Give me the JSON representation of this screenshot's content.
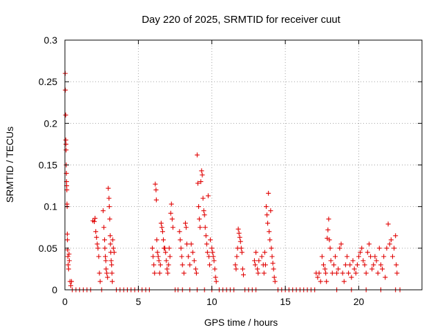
{
  "chart_data": {
    "type": "scatter",
    "title": "Day 220 of 2025, SRMTID for receiver cuut",
    "xlabel": "GPS time / hours",
    "ylabel": "SRMTID / TECUs",
    "xlim": [
      0,
      24.3
    ],
    "ylim": [
      0,
      0.3
    ],
    "xticks": [
      0,
      5,
      10,
      15,
      20
    ],
    "yticks": [
      0,
      0.05,
      0.1,
      0.15,
      0.2,
      0.25,
      0.3
    ],
    "grid": true,
    "marker": "plus",
    "color": "#e00000",
    "series": [
      {
        "name": "SRMTID",
        "points": [
          [
            0.02,
            0.26
          ],
          [
            0.03,
            0.24
          ],
          [
            0.05,
            0.21
          ],
          [
            0.06,
            0.18
          ],
          [
            0.07,
            0.175
          ],
          [
            0.08,
            0.168
          ],
          [
            0.09,
            0.15
          ],
          [
            0.1,
            0.14
          ],
          [
            0.11,
            0.13
          ],
          [
            0.12,
            0.125
          ],
          [
            0.13,
            0.12
          ],
          [
            0.14,
            0.103
          ],
          [
            0.15,
            0.1
          ],
          [
            0.16,
            0.067
          ],
          [
            0.17,
            0.06
          ],
          [
            0.18,
            0.048
          ],
          [
            0.2,
            0.04
          ],
          [
            0.22,
            0.03
          ],
          [
            0.25,
            0.025
          ],
          [
            0.28,
            0.043
          ],
          [
            0.3,
            0.035
          ],
          [
            0.35,
            0.01
          ],
          [
            0.4,
            0.005
          ],
          [
            0.45,
            0.01
          ],
          [
            1.9,
            0.083
          ],
          [
            2.0,
            0.082
          ],
          [
            2.05,
            0.086
          ],
          [
            2.1,
            0.07
          ],
          [
            2.15,
            0.063
          ],
          [
            2.2,
            0.055
          ],
          [
            2.25,
            0.05
          ],
          [
            2.3,
            0.04
          ],
          [
            2.35,
            0.02
          ],
          [
            2.4,
            0.01
          ],
          [
            2.6,
            0.095
          ],
          [
            2.65,
            0.075
          ],
          [
            2.7,
            0.06
          ],
          [
            2.72,
            0.05
          ],
          [
            2.75,
            0.04
          ],
          [
            2.78,
            0.035
          ],
          [
            2.8,
            0.025
          ],
          [
            2.85,
            0.02
          ],
          [
            2.9,
            0.015
          ],
          [
            2.95,
            0.122
          ],
          [
            3.0,
            0.11
          ],
          [
            3.02,
            0.1
          ],
          [
            3.05,
            0.085
          ],
          [
            3.08,
            0.065
          ],
          [
            3.1,
            0.055
          ],
          [
            3.12,
            0.045
          ],
          [
            3.15,
            0.035
          ],
          [
            3.18,
            0.03
          ],
          [
            3.2,
            0.02
          ],
          [
            3.22,
            0.01
          ],
          [
            3.25,
            0.06
          ],
          [
            3.3,
            0.05
          ],
          [
            3.35,
            0.045
          ],
          [
            5.95,
            0.05
          ],
          [
            6.0,
            0.04
          ],
          [
            6.05,
            0.03
          ],
          [
            6.1,
            0.02
          ],
          [
            6.15,
            0.127
          ],
          [
            6.2,
            0.12
          ],
          [
            6.22,
            0.108
          ],
          [
            6.25,
            0.06
          ],
          [
            6.3,
            0.045
          ],
          [
            6.35,
            0.04
          ],
          [
            6.4,
            0.035
          ],
          [
            6.45,
            0.02
          ],
          [
            6.5,
            0.03
          ],
          [
            6.55,
            0.08
          ],
          [
            6.6,
            0.075
          ],
          [
            6.65,
            0.07
          ],
          [
            6.7,
            0.06
          ],
          [
            6.75,
            0.05
          ],
          [
            6.8,
            0.05
          ],
          [
            6.85,
            0.045
          ],
          [
            6.9,
            0.035
          ],
          [
            6.95,
            0.025
          ],
          [
            7.0,
            0.02
          ],
          [
            7.05,
            0.03
          ],
          [
            7.1,
            0.05
          ],
          [
            7.15,
            0.04
          ],
          [
            7.2,
            0.092
          ],
          [
            7.25,
            0.103
          ],
          [
            7.3,
            0.085
          ],
          [
            7.35,
            0.075
          ],
          [
            7.8,
            0.07
          ],
          [
            7.85,
            0.06
          ],
          [
            7.9,
            0.05
          ],
          [
            7.95,
            0.04
          ],
          [
            8.0,
            0.03
          ],
          [
            8.1,
            0.02
          ],
          [
            8.2,
            0.08
          ],
          [
            8.25,
            0.075
          ],
          [
            8.3,
            0.055
          ],
          [
            8.4,
            0.04
          ],
          [
            8.5,
            0.03
          ],
          [
            8.6,
            0.055
          ],
          [
            8.7,
            0.045
          ],
          [
            8.8,
            0.035
          ],
          [
            8.9,
            0.025
          ],
          [
            8.95,
            0.02
          ],
          [
            9.0,
            0.162
          ],
          [
            9.05,
            0.128
          ],
          [
            9.1,
            0.1
          ],
          [
            9.15,
            0.085
          ],
          [
            9.2,
            0.075
          ],
          [
            9.25,
            0.13
          ],
          [
            9.3,
            0.143
          ],
          [
            9.35,
            0.138
          ],
          [
            9.4,
            0.11
          ],
          [
            9.45,
            0.095
          ],
          [
            9.5,
            0.09
          ],
          [
            9.55,
            0.075
          ],
          [
            9.6,
            0.065
          ],
          [
            9.65,
            0.055
          ],
          [
            9.7,
            0.045
          ],
          [
            9.75,
            0.113
          ],
          [
            9.8,
            0.04
          ],
          [
            9.85,
            0.03
          ],
          [
            9.9,
            0.06
          ],
          [
            10.0,
            0.05
          ],
          [
            10.05,
            0.045
          ],
          [
            10.1,
            0.04
          ],
          [
            10.15,
            0.035
          ],
          [
            10.2,
            0.025
          ],
          [
            10.25,
            0.015
          ],
          [
            10.3,
            0.01
          ],
          [
            11.6,
            0.03
          ],
          [
            11.65,
            0.025
          ],
          [
            11.7,
            0.04
          ],
          [
            11.75,
            0.05
          ],
          [
            11.8,
            0.073
          ],
          [
            11.85,
            0.068
          ],
          [
            11.9,
            0.063
          ],
          [
            11.95,
            0.058
          ],
          [
            12.0,
            0.05
          ],
          [
            12.05,
            0.045
          ],
          [
            12.1,
            0.025
          ],
          [
            12.15,
            0.018
          ],
          [
            12.9,
            0.035
          ],
          [
            12.95,
            0.03
          ],
          [
            13.0,
            0.045
          ],
          [
            13.1,
            0.025
          ],
          [
            13.15,
            0.02
          ],
          [
            13.2,
            0.035
          ],
          [
            13.4,
            0.04
          ],
          [
            13.5,
            0.03
          ],
          [
            13.55,
            0.02
          ],
          [
            13.6,
            0.045
          ],
          [
            13.65,
            0.03
          ],
          [
            13.7,
            0.1
          ],
          [
            13.75,
            0.09
          ],
          [
            13.8,
            0.08
          ],
          [
            13.85,
            0.116
          ],
          [
            13.9,
            0.07
          ],
          [
            13.95,
            0.06
          ],
          [
            14.0,
            0.095
          ],
          [
            14.05,
            0.05
          ],
          [
            14.1,
            0.04
          ],
          [
            14.15,
            0.032
          ],
          [
            14.2,
            0.025
          ],
          [
            14.25,
            0.015
          ],
          [
            14.3,
            0.01
          ],
          [
            17.1,
            0.02
          ],
          [
            17.2,
            0.015
          ],
          [
            17.3,
            0.02
          ],
          [
            17.4,
            0.01
          ],
          [
            17.5,
            0.04
          ],
          [
            17.6,
            0.03
          ],
          [
            17.7,
            0.025
          ],
          [
            17.75,
            0.02
          ],
          [
            17.8,
            0.01
          ],
          [
            17.85,
            0.062
          ],
          [
            17.9,
            0.072
          ],
          [
            17.95,
            0.085
          ],
          [
            18.0,
            0.06
          ],
          [
            18.05,
            0.05
          ],
          [
            18.1,
            0.035
          ],
          [
            18.2,
            0.02
          ],
          [
            18.3,
            0.03
          ],
          [
            18.4,
            0.04
          ],
          [
            18.5,
            0.02
          ],
          [
            18.6,
            0.025
          ],
          [
            18.7,
            0.05
          ],
          [
            18.8,
            0.055
          ],
          [
            18.9,
            0.02
          ],
          [
            19.0,
            0.01
          ],
          [
            19.1,
            0.03
          ],
          [
            19.2,
            0.04
          ],
          [
            19.3,
            0.02
          ],
          [
            19.4,
            0.03
          ],
          [
            19.5,
            0.015
          ],
          [
            19.6,
            0.035
          ],
          [
            19.7,
            0.025
          ],
          [
            19.8,
            0.02
          ],
          [
            19.9,
            0.03
          ],
          [
            20.0,
            0.04
          ],
          [
            20.1,
            0.045
          ],
          [
            20.2,
            0.05
          ],
          [
            20.3,
            0.035
          ],
          [
            20.4,
            0.03
          ],
          [
            20.5,
            0.02
          ],
          [
            20.6,
            0.045
          ],
          [
            20.7,
            0.055
          ],
          [
            20.8,
            0.04
          ],
          [
            20.9,
            0.025
          ],
          [
            21.0,
            0.03
          ],
          [
            21.1,
            0.04
          ],
          [
            21.2,
            0.035
          ],
          [
            21.3,
            0.02
          ],
          [
            21.4,
            0.05
          ],
          [
            21.5,
            0.03
          ],
          [
            21.6,
            0.025
          ],
          [
            21.7,
            0.04
          ],
          [
            21.8,
            0.015
          ],
          [
            21.9,
            0.05
          ],
          [
            22.0,
            0.079
          ],
          [
            22.1,
            0.055
          ],
          [
            22.2,
            0.06
          ],
          [
            22.3,
            0.04
          ],
          [
            22.4,
            0.05
          ],
          [
            22.5,
            0.065
          ],
          [
            22.55,
            0.03
          ],
          [
            22.6,
            0.02
          ],
          [
            0.5,
            0.0
          ],
          [
            0.75,
            0.0
          ],
          [
            1.0,
            0.0
          ],
          [
            1.25,
            0.0
          ],
          [
            1.5,
            0.0
          ],
          [
            1.75,
            0.0
          ],
          [
            2.5,
            0.0
          ],
          [
            3.5,
            0.0
          ],
          [
            3.75,
            0.0
          ],
          [
            4.0,
            0.0
          ],
          [
            4.25,
            0.0
          ],
          [
            4.5,
            0.0
          ],
          [
            4.75,
            0.0
          ],
          [
            5.0,
            0.0
          ],
          [
            5.25,
            0.0
          ],
          [
            5.5,
            0.0
          ],
          [
            5.75,
            0.0
          ],
          [
            7.5,
            0.0
          ],
          [
            7.7,
            0.0
          ],
          [
            8.0,
            0.0
          ],
          [
            8.5,
            0.0
          ],
          [
            9.0,
            0.0
          ],
          [
            9.5,
            0.0
          ],
          [
            10.0,
            0.0
          ],
          [
            10.5,
            0.0
          ],
          [
            10.75,
            0.0
          ],
          [
            11.0,
            0.0
          ],
          [
            11.25,
            0.0
          ],
          [
            11.5,
            0.0
          ],
          [
            12.25,
            0.0
          ],
          [
            12.5,
            0.0
          ],
          [
            12.75,
            0.0
          ],
          [
            13.0,
            0.0
          ],
          [
            14.5,
            0.0
          ],
          [
            14.75,
            0.0
          ],
          [
            15.0,
            0.0
          ],
          [
            15.25,
            0.0
          ],
          [
            15.5,
            0.0
          ],
          [
            15.75,
            0.0
          ],
          [
            16.0,
            0.0
          ],
          [
            16.25,
            0.0
          ],
          [
            16.5,
            0.0
          ],
          [
            16.75,
            0.0
          ],
          [
            17.0,
            0.0
          ],
          [
            18.5,
            0.0
          ],
          [
            19.5,
            0.0
          ],
          [
            20.5,
            0.0
          ],
          [
            21.5,
            0.0
          ],
          [
            22.5,
            0.0
          ],
          [
            22.8,
            0.0
          ]
        ]
      }
    ]
  }
}
